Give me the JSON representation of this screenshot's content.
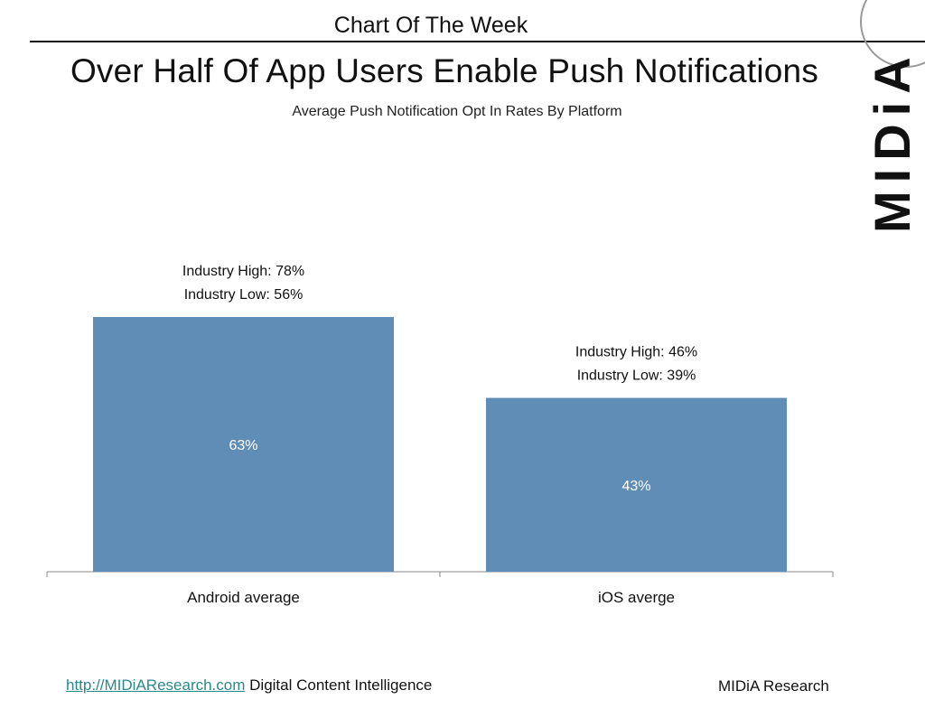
{
  "header": {
    "kicker": "Chart Of The Week",
    "brand": "MIDiA"
  },
  "footer": {
    "link_text": "http://MIDiAResearch.com",
    "tagline": "Digital Content Intelligence",
    "company": "MIDiA Research"
  },
  "colors": {
    "bar": "#5f8db5",
    "link": "#2a8a8a"
  },
  "chart_data": {
    "type": "bar",
    "title": "Over Half Of App Users Enable Push Notifications",
    "subtitle": "Average Push Notification Opt In Rates By Platform",
    "categories": [
      "Android average",
      "iOS averge"
    ],
    "values": [
      63,
      43
    ],
    "value_labels": [
      "63%",
      "43%"
    ],
    "annotations": [
      [
        "Industry High: 78%",
        "Industry Low: 56%"
      ],
      [
        "Industry High: 46%",
        "Industry Low: 39%"
      ]
    ],
    "ylim": [
      0,
      70
    ],
    "grid": false
  }
}
